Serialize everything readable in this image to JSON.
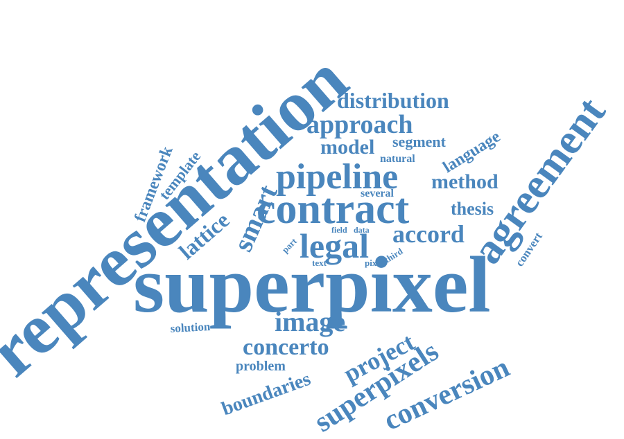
{
  "style": {
    "word_color": "#4a86bd",
    "background": "#ffffff"
  },
  "words": [
    {
      "id": "superpixel",
      "text": "superpixel"
    },
    {
      "id": "representation",
      "text": "representation"
    },
    {
      "id": "agreement",
      "text": "agreement"
    },
    {
      "id": "contract",
      "text": "contract"
    },
    {
      "id": "pipeline",
      "text": "pipeline"
    },
    {
      "id": "legal",
      "text": "legal"
    },
    {
      "id": "approach",
      "text": "approach"
    },
    {
      "id": "distribution",
      "text": "distribution"
    },
    {
      "id": "model",
      "text": "model"
    },
    {
      "id": "segment",
      "text": "segment"
    },
    {
      "id": "natural",
      "text": "natural"
    },
    {
      "id": "language",
      "text": "language"
    },
    {
      "id": "method",
      "text": "method"
    },
    {
      "id": "several",
      "text": "several"
    },
    {
      "id": "thesis",
      "text": "thesis"
    },
    {
      "id": "accord",
      "text": "accord"
    },
    {
      "id": "field",
      "text": "field"
    },
    {
      "id": "data",
      "text": "data"
    },
    {
      "id": "part",
      "text": "part"
    },
    {
      "id": "text",
      "text": "text"
    },
    {
      "id": "pixel",
      "text": "pixel"
    },
    {
      "id": "third",
      "text": "third"
    },
    {
      "id": "convert",
      "text": "convert"
    },
    {
      "id": "smart",
      "text": "smart"
    },
    {
      "id": "lattice",
      "text": "lattice"
    },
    {
      "id": "template",
      "text": "template"
    },
    {
      "id": "framework",
      "text": "framework"
    },
    {
      "id": "image",
      "text": "image"
    },
    {
      "id": "solution",
      "text": "solution"
    },
    {
      "id": "concerto",
      "text": "concerto"
    },
    {
      "id": "problem",
      "text": "problem"
    },
    {
      "id": "boundaries",
      "text": "boundaries"
    },
    {
      "id": "project",
      "text": "project"
    },
    {
      "id": "superpixels",
      "text": "superpixels"
    },
    {
      "id": "conversion",
      "text": "conversion"
    }
  ]
}
